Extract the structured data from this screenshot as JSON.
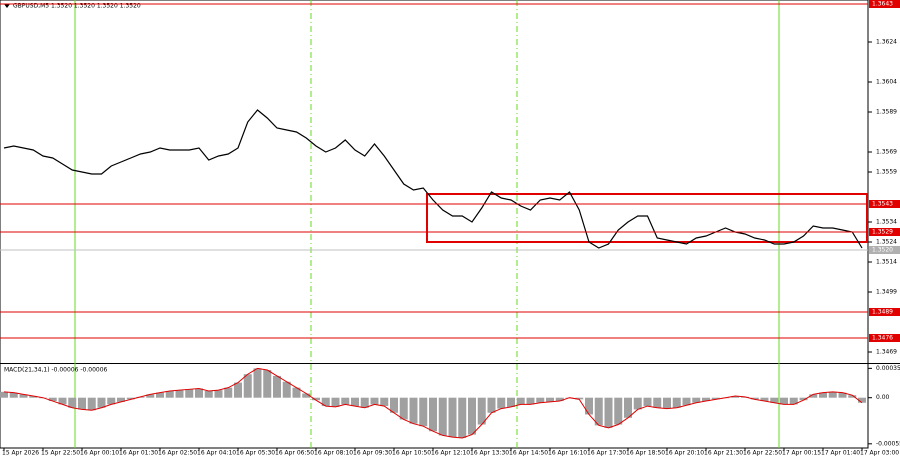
{
  "chart_data": [
    {
      "type": "line",
      "title": "GBPUSD,M5  1.3520 1.3520 1.3520 1.3520",
      "color": "#000000",
      "categories": [
        "15 Apr 2026",
        null,
        null,
        null,
        "15 Apr 22:50",
        null,
        null,
        null,
        "16 Apr 00:10",
        null,
        null,
        null,
        "16 Apr 01:30",
        null,
        null,
        null,
        "16 Apr 02:50",
        null,
        null,
        null,
        "16 Apr 04:10",
        null,
        null,
        null,
        "16 Apr 05:30",
        null,
        null,
        null,
        "16 Apr 06:50",
        null,
        null,
        null,
        "16 Apr 08:10",
        null,
        null,
        null,
        "16 Apr 09:30",
        null,
        null,
        null,
        "16 Apr 10:50",
        null,
        null,
        null,
        "16 Apr 12:10",
        null,
        null,
        null,
        "16 Apr 13:30",
        null,
        null,
        null,
        "16 Apr 14:50",
        null,
        null,
        null,
        "16 Apr 16:10",
        null,
        null,
        null,
        "16 Apr 17:30",
        null,
        null,
        null,
        "16 Apr 18:50",
        null,
        null,
        null,
        "16 Apr 20:10",
        null,
        null,
        null,
        "16 Apr 21:30",
        null,
        null,
        null,
        "16 Apr 22:50",
        null,
        null,
        null,
        "17 Apr 00:15",
        null,
        null,
        null,
        "17 Apr 01:40",
        null,
        null,
        null,
        "17 Apr 03:00"
      ],
      "values": [
        1.3571,
        1.3572,
        1.3571,
        1.357,
        1.3567,
        1.3566,
        1.3563,
        1.356,
        1.3559,
        1.3558,
        1.3558,
        1.3562,
        1.3564,
        1.3566,
        1.3568,
        1.3569,
        1.3571,
        1.357,
        1.357,
        1.357,
        1.3571,
        1.3565,
        1.3567,
        1.3568,
        1.3571,
        1.3584,
        1.359,
        1.3586,
        1.3581,
        1.358,
        1.3579,
        1.3576,
        1.3572,
        1.3569,
        1.3571,
        1.3575,
        1.357,
        1.3567,
        1.3573,
        1.3567,
        1.356,
        1.3553,
        1.355,
        1.3551,
        1.3545,
        1.354,
        1.3537,
        1.3537,
        1.3534,
        1.3541,
        1.3549,
        1.3546,
        1.3545,
        1.3542,
        1.354,
        1.3545,
        1.3546,
        1.3545,
        1.3549,
        1.354,
        1.3524,
        1.3521,
        1.3523,
        1.353,
        1.3534,
        1.3537,
        1.3537,
        1.3526,
        1.3525,
        1.3524,
        1.3523,
        1.3526,
        1.3527,
        1.3529,
        1.3531,
        1.3529,
        1.3528,
        1.3526,
        1.3525,
        1.3523,
        1.3523,
        1.3524,
        1.3527,
        1.3532,
        1.3531,
        1.3531,
        1.353,
        1.3529,
        1.3521
      ],
      "ylim": [
        1.3464,
        1.3645
      ],
      "yticks": [
        1.3624,
        1.3604,
        1.3589,
        1.3569,
        1.3559,
        1.3534,
        1.3524,
        1.3514,
        1.3499,
        1.3469
      ],
      "levels": [
        1.3643,
        1.3543,
        1.3529,
        1.3489,
        1.3476
      ],
      "level_color": "#e00000",
      "current_price": {
        "value": 1.352,
        "label": "1.3520"
      }
    },
    {
      "type": "bar",
      "title": "MACD(21,34,1) -0.00006 -0.00006",
      "color": "#a0a0a0",
      "line_color": "#e00000",
      "values": [
        7e-05,
        6e-05,
        4e-05,
        2e-05,
        0,
        -4e-05,
        -8e-05,
        -0.00012,
        -0.00014,
        -0.00015,
        -0.00012,
        -8e-05,
        -5e-05,
        -2e-05,
        1e-05,
        4e-05,
        6e-05,
        8e-05,
        9e-05,
        0.0001,
        0.00011,
        8e-05,
        9e-05,
        0.00012,
        0.00018,
        0.00028,
        0.00035,
        0.00033,
        0.00026,
        0.00019,
        0.00012,
        5e-05,
        -3e-05,
        -0.0001,
        -0.00011,
        -8e-05,
        -0.0001,
        -0.00012,
        -8e-05,
        -0.0001,
        -0.00018,
        -0.00026,
        -0.00031,
        -0.00034,
        -0.0004,
        -0.00045,
        -0.00047,
        -0.00048,
        -0.00044,
        -0.00032,
        -0.00018,
        -0.00013,
        -0.00011,
        -8e-05,
        -8e-05,
        -6e-05,
        -5e-05,
        -4e-05,
        0,
        -2e-05,
        -0.0002,
        -0.00033,
        -0.00036,
        -0.00032,
        -0.00024,
        -0.00014,
        -0.0001,
        -0.00012,
        -0.00013,
        -0.00012,
        -9e-05,
        -6e-05,
        -4e-05,
        -2e-05,
        0,
        2e-05,
        1e-05,
        -2e-05,
        -4e-05,
        -6e-05,
        -8e-05,
        -8e-05,
        -3e-05,
        4e-05,
        6e-05,
        7e-05,
        6e-05,
        3e-05,
        -6e-05
      ],
      "ylim": [
        -0.0006,
        0.00039
      ],
      "yticks": [
        0.00035,
        {
          "value": 0,
          "label": "0.00"
        },
        -0.00055
      ]
    }
  ]
}
